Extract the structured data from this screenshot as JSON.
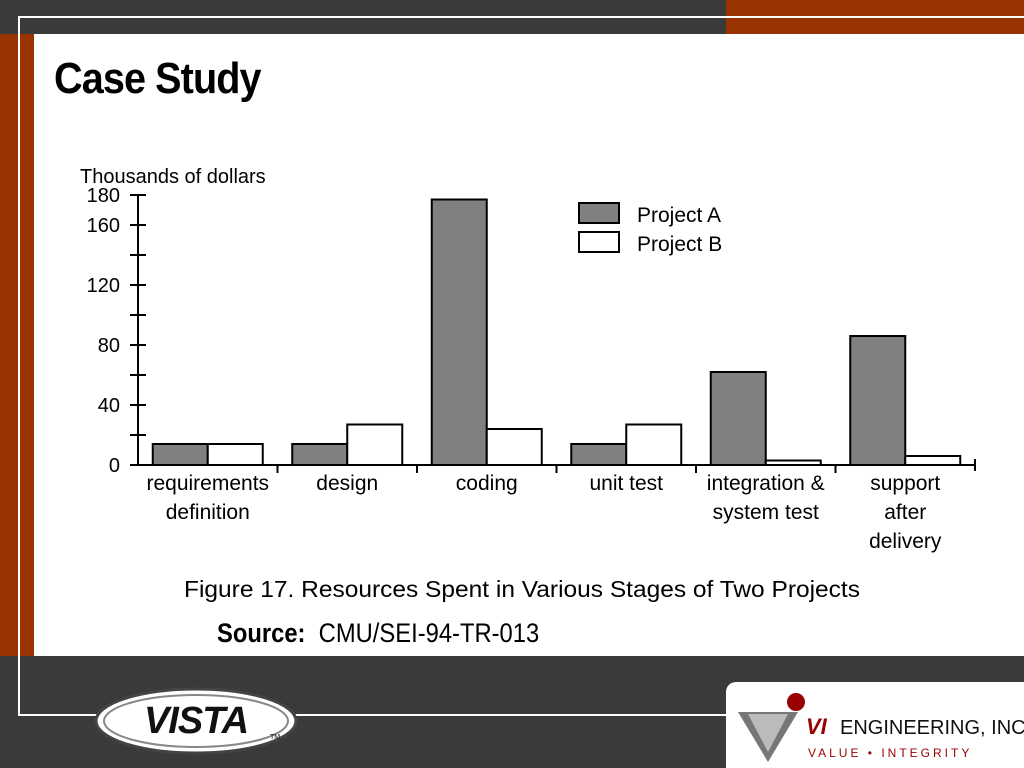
{
  "slide": {
    "title": "Case Study",
    "source_label": "Source:",
    "source_value": "CMU/SEI-94-TR-013"
  },
  "logos": {
    "left": "VISTA",
    "left_tm": "TM",
    "right_brand": "VI",
    "right_name": "ENGINEERING, INC.",
    "right_tagline": "VALUE • INTEGRITY"
  },
  "colors": {
    "accent_orange": "#993300",
    "dark_gray": "#3a3a3a",
    "project_a_fill": "#808080",
    "project_b_fill": "#ffffff"
  },
  "chart_data": {
    "type": "bar",
    "title": "Figure 17.  Resources Spent in Various Stages of Two Projects",
    "ylabel": "Thousands of dollars",
    "ylim": [
      0,
      180
    ],
    "yticks": [
      0,
      40,
      80,
      120,
      160,
      180
    ],
    "legend_position": "top-right",
    "categories": [
      [
        "requirements",
        "definition"
      ],
      [
        "design"
      ],
      [
        "coding"
      ],
      [
        "unit test"
      ],
      [
        "integration &",
        "system test"
      ],
      [
        "support",
        "after",
        "delivery"
      ]
    ],
    "series": [
      {
        "name": "Project A",
        "color": "#808080",
        "values": [
          14,
          14,
          177,
          14,
          62,
          86
        ]
      },
      {
        "name": "Project B",
        "color": "#ffffff",
        "values": [
          14,
          27,
          24,
          27,
          3,
          6
        ]
      }
    ]
  }
}
